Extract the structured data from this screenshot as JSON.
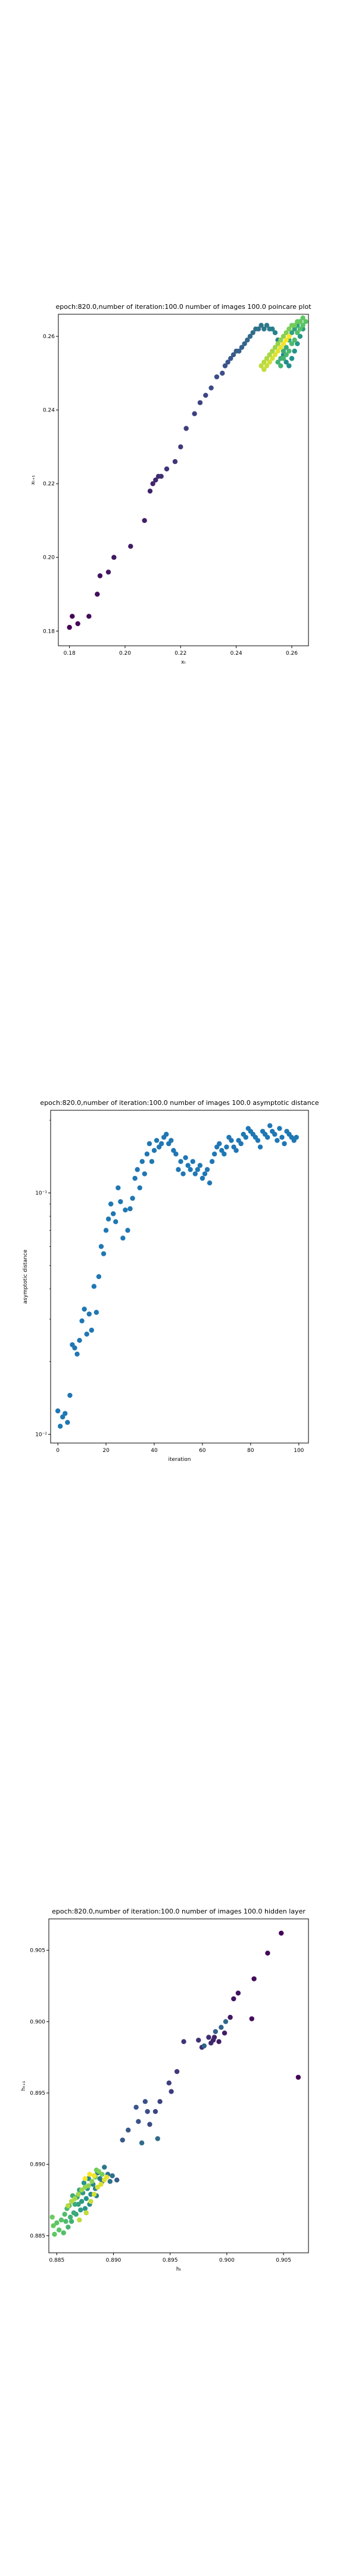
{
  "chart_data": [
    {
      "type": "scatter",
      "title": "epoch:820.0,number of iteration:100.0  number of images 100.0 poincare plot",
      "xlabel": "xₜ",
      "ylabel": "xₜ₊₁",
      "xlim": [
        0.176,
        0.266
      ],
      "ylim": [
        0.176,
        0.266
      ],
      "xticks": [
        0.18,
        0.2,
        0.22,
        0.24,
        0.26
      ],
      "yticks": [
        0.18,
        0.2,
        0.22,
        0.24,
        0.26
      ],
      "tick_labels": [
        "0.18",
        "0.20",
        "0.22",
        "0.24",
        "0.26"
      ],
      "color_by": "iteration",
      "points": [
        [
          0.18,
          0.181
        ],
        [
          0.181,
          0.184
        ],
        [
          0.183,
          0.182
        ],
        [
          0.187,
          0.184
        ],
        [
          0.19,
          0.19
        ],
        [
          0.191,
          0.195
        ],
        [
          0.194,
          0.196
        ],
        [
          0.196,
          0.2
        ],
        [
          0.202,
          0.203
        ],
        [
          0.207,
          0.21
        ],
        [
          0.209,
          0.218
        ],
        [
          0.21,
          0.22
        ],
        [
          0.211,
          0.221
        ],
        [
          0.212,
          0.222
        ],
        [
          0.213,
          0.222
        ],
        [
          0.215,
          0.224
        ],
        [
          0.218,
          0.226
        ],
        [
          0.22,
          0.23
        ],
        [
          0.222,
          0.235
        ],
        [
          0.225,
          0.239
        ],
        [
          0.227,
          0.242
        ],
        [
          0.229,
          0.244
        ],
        [
          0.231,
          0.246
        ],
        [
          0.233,
          0.249
        ],
        [
          0.235,
          0.25
        ],
        [
          0.236,
          0.252
        ],
        [
          0.237,
          0.253
        ],
        [
          0.238,
          0.254
        ],
        [
          0.239,
          0.255
        ],
        [
          0.24,
          0.256
        ],
        [
          0.241,
          0.256
        ],
        [
          0.242,
          0.257
        ],
        [
          0.243,
          0.258
        ],
        [
          0.244,
          0.259
        ],
        [
          0.245,
          0.26
        ],
        [
          0.246,
          0.261
        ],
        [
          0.247,
          0.262
        ],
        [
          0.248,
          0.262
        ],
        [
          0.249,
          0.263
        ],
        [
          0.25,
          0.262
        ],
        [
          0.251,
          0.263
        ],
        [
          0.252,
          0.262
        ],
        [
          0.253,
          0.262
        ],
        [
          0.254,
          0.261
        ],
        [
          0.255,
          0.259
        ],
        [
          0.256,
          0.257
        ],
        [
          0.257,
          0.255
        ],
        [
          0.258,
          0.253
        ],
        [
          0.259,
          0.252
        ],
        [
          0.26,
          0.254
        ],
        [
          0.261,
          0.256
        ],
        [
          0.262,
          0.258
        ],
        [
          0.263,
          0.26
        ],
        [
          0.264,
          0.262
        ],
        [
          0.263,
          0.264
        ],
        [
          0.262,
          0.263
        ],
        [
          0.261,
          0.262
        ],
        [
          0.26,
          0.261
        ],
        [
          0.259,
          0.259
        ],
        [
          0.258,
          0.257
        ],
        [
          0.257,
          0.256
        ],
        [
          0.256,
          0.254
        ],
        [
          0.255,
          0.253
        ],
        [
          0.256,
          0.252
        ],
        [
          0.257,
          0.254
        ],
        [
          0.258,
          0.255
        ],
        [
          0.259,
          0.256
        ],
        [
          0.26,
          0.258
        ],
        [
          0.261,
          0.259
        ],
        [
          0.262,
          0.261
        ],
        [
          0.263,
          0.262
        ],
        [
          0.264,
          0.263
        ],
        [
          0.265,
          0.264
        ],
        [
          0.264,
          0.265
        ],
        [
          0.263,
          0.264
        ],
        [
          0.262,
          0.264
        ],
        [
          0.261,
          0.263
        ],
        [
          0.26,
          0.263
        ],
        [
          0.259,
          0.262
        ],
        [
          0.258,
          0.261
        ],
        [
          0.257,
          0.26
        ],
        [
          0.256,
          0.259
        ],
        [
          0.255,
          0.258
        ],
        [
          0.254,
          0.257
        ],
        [
          0.253,
          0.256
        ],
        [
          0.252,
          0.255
        ],
        [
          0.251,
          0.254
        ],
        [
          0.25,
          0.253
        ],
        [
          0.249,
          0.252
        ],
        [
          0.25,
          0.251
        ],
        [
          0.251,
          0.252
        ],
        [
          0.252,
          0.253
        ],
        [
          0.253,
          0.254
        ],
        [
          0.254,
          0.255
        ],
        [
          0.255,
          0.256
        ],
        [
          0.256,
          0.257
        ],
        [
          0.257,
          0.258
        ],
        [
          0.258,
          0.259
        ],
        [
          0.259,
          0.26
        ]
      ]
    },
    {
      "type": "scatter",
      "title": "epoch:820.0,number of iteration:100.0  number of images 100.0 asymptotic distance",
      "xlabel": "iteration",
      "ylabel": "asymptotic distance",
      "yscale": "log",
      "xlim": [
        -3,
        104
      ],
      "ylim": [
        0.0092,
        0.22
      ],
      "xticks": [
        0,
        20,
        40,
        60,
        80,
        100
      ],
      "xtick_labels": [
        "0",
        "20",
        "40",
        "60",
        "80",
        "100"
      ],
      "yticks": [
        0.01,
        0.1
      ],
      "ytick_labels": [
        "10⁻²",
        "10⁻¹"
      ],
      "color": "#1f77b4",
      "x": [
        0,
        1,
        2,
        3,
        4,
        5,
        6,
        7,
        8,
        9,
        10,
        11,
        12,
        13,
        14,
        15,
        16,
        17,
        18,
        19,
        20,
        21,
        22,
        23,
        24,
        25,
        26,
        27,
        28,
        29,
        30,
        31,
        32,
        33,
        34,
        35,
        36,
        37,
        38,
        39,
        40,
        41,
        42,
        43,
        44,
        45,
        46,
        47,
        48,
        49,
        50,
        51,
        52,
        53,
        54,
        55,
        56,
        57,
        58,
        59,
        60,
        61,
        62,
        63,
        64,
        65,
        66,
        67,
        68,
        69,
        70,
        71,
        72,
        73,
        74,
        75,
        76,
        77,
        78,
        79,
        80,
        81,
        82,
        83,
        84,
        85,
        86,
        87,
        88,
        89,
        90,
        91,
        92,
        93,
        94,
        95,
        96,
        97,
        98,
        99
      ],
      "y": [
        0.0125,
        0.0108,
        0.0118,
        0.0122,
        0.0112,
        0.0145,
        0.0235,
        0.0228,
        0.0215,
        0.0245,
        0.0295,
        0.033,
        0.026,
        0.0315,
        0.027,
        0.041,
        0.032,
        0.045,
        0.06,
        0.056,
        0.07,
        0.078,
        0.09,
        0.082,
        0.076,
        0.105,
        0.092,
        0.065,
        0.085,
        0.07,
        0.086,
        0.095,
        0.115,
        0.125,
        0.105,
        0.135,
        0.12,
        0.145,
        0.16,
        0.135,
        0.15,
        0.165,
        0.155,
        0.16,
        0.17,
        0.175,
        0.16,
        0.165,
        0.15,
        0.145,
        0.125,
        0.135,
        0.12,
        0.14,
        0.13,
        0.125,
        0.135,
        0.12,
        0.125,
        0.13,
        0.115,
        0.12,
        0.125,
        0.11,
        0.135,
        0.145,
        0.155,
        0.16,
        0.15,
        0.145,
        0.155,
        0.17,
        0.165,
        0.155,
        0.15,
        0.165,
        0.16,
        0.175,
        0.17,
        0.185,
        0.18,
        0.175,
        0.17,
        0.165,
        0.155,
        0.18,
        0.175,
        0.17,
        0.19,
        0.18,
        0.175,
        0.165,
        0.185,
        0.17,
        0.16,
        0.18,
        0.175,
        0.17,
        0.165,
        0.17
      ]
    },
    {
      "type": "scatter",
      "title": "epoch:820.0,number of iteration:100.0  number of images 100.0 hidden layer",
      "xlabel": "hₜ",
      "ylabel": "hₜ₊₁",
      "xlim": [
        0.8843,
        0.9072
      ],
      "ylim": [
        0.8838,
        0.9072
      ],
      "xticks": [
        0.885,
        0.89,
        0.895,
        0.9,
        0.905
      ],
      "xtick_labels": [
        "0.885",
        "0.890",
        "0.895",
        "0.900",
        "0.905"
      ],
      "yticks": [
        0.885,
        0.89,
        0.895,
        0.9,
        0.905
      ],
      "ytick_labels": [
        "0.885",
        "0.890",
        "0.895",
        "0.900",
        "0.905"
      ],
      "color_by": "iteration",
      "points": [
        [
          0.9063,
          0.8961
        ],
        [
          0.9048,
          0.9062
        ],
        [
          0.9036,
          0.9048
        ],
        [
          0.9024,
          0.903
        ],
        [
          0.9022,
          0.9002
        ],
        [
          0.901,
          0.902
        ],
        [
          0.9006,
          0.9016
        ],
        [
          0.9003,
          0.9003
        ],
        [
          0.8998,
          0.8992
        ],
        [
          0.8993,
          0.8986
        ],
        [
          0.8989,
          0.8989
        ],
        [
          0.8988,
          0.8987
        ],
        [
          0.8986,
          0.8985
        ],
        [
          0.8984,
          0.8989
        ],
        [
          0.8978,
          0.8982
        ],
        [
          0.8975,
          0.8987
        ],
        [
          0.8962,
          0.8986
        ],
        [
          0.8956,
          0.8965
        ],
        [
          0.8951,
          0.8951
        ],
        [
          0.8949,
          0.8957
        ],
        [
          0.8941,
          0.8944
        ],
        [
          0.8937,
          0.8937
        ],
        [
          0.8932,
          0.8928
        ],
        [
          0.893,
          0.8937
        ],
        [
          0.8928,
          0.8944
        ],
        [
          0.8922,
          0.893
        ],
        [
          0.892,
          0.894
        ],
        [
          0.8913,
          0.8924
        ],
        [
          0.8908,
          0.8917
        ],
        [
          0.8903,
          0.8889
        ],
        [
          0.899,
          0.8993
        ],
        [
          0.8995,
          0.8996
        ],
        [
          0.898,
          0.8983
        ],
        [
          0.8999,
          0.9
        ],
        [
          0.8939,
          0.8918
        ],
        [
          0.8925,
          0.8915
        ],
        [
          0.8899,
          0.8892
        ],
        [
          0.8897,
          0.8888
        ],
        [
          0.8895,
          0.8893
        ],
        [
          0.8892,
          0.8898
        ],
        [
          0.889,
          0.8888
        ],
        [
          0.8888,
          0.889
        ],
        [
          0.8886,
          0.8894
        ],
        [
          0.8885,
          0.8878
        ],
        [
          0.8884,
          0.8883
        ],
        [
          0.8882,
          0.8886
        ],
        [
          0.888,
          0.8879
        ],
        [
          0.8879,
          0.8872
        ],
        [
          0.8878,
          0.889
        ],
        [
          0.8877,
          0.8883
        ],
        [
          0.8876,
          0.8876
        ],
        [
          0.8875,
          0.8869
        ],
        [
          0.8874,
          0.8887
        ],
        [
          0.8873,
          0.888
        ],
        [
          0.8872,
          0.8874
        ],
        [
          0.8871,
          0.8868
        ],
        [
          0.887,
          0.8882
        ],
        [
          0.8869,
          0.8872
        ],
        [
          0.8868,
          0.8877
        ],
        [
          0.8867,
          0.8865
        ],
        [
          0.8866,
          0.8872
        ],
        [
          0.8865,
          0.8866
        ],
        [
          0.8864,
          0.8878
        ],
        [
          0.8863,
          0.886
        ],
        [
          0.8862,
          0.8863
        ],
        [
          0.8861,
          0.8871
        ],
        [
          0.886,
          0.8856
        ],
        [
          0.8859,
          0.8869
        ],
        [
          0.8858,
          0.886
        ],
        [
          0.8857,
          0.8865
        ],
        [
          0.8856,
          0.8852
        ],
        [
          0.8854,
          0.8861
        ],
        [
          0.8852,
          0.8854
        ],
        [
          0.885,
          0.8859
        ],
        [
          0.8848,
          0.8851
        ],
        [
          0.8847,
          0.8857
        ],
        [
          0.8846,
          0.8863
        ],
        [
          0.8885,
          0.8896
        ],
        [
          0.889,
          0.8893
        ],
        [
          0.8887,
          0.8895
        ],
        [
          0.8884,
          0.8891
        ],
        [
          0.8881,
          0.8888
        ],
        [
          0.8878,
          0.8885
        ],
        [
          0.8875,
          0.8884
        ],
        [
          0.8872,
          0.8882
        ],
        [
          0.8869,
          0.8879
        ],
        [
          0.8866,
          0.8876
        ],
        [
          0.8863,
          0.8874
        ],
        [
          0.886,
          0.8871
        ],
        [
          0.887,
          0.8861
        ],
        [
          0.8876,
          0.8866
        ],
        [
          0.888,
          0.8874
        ],
        [
          0.8883,
          0.8879
        ],
        [
          0.8886,
          0.8884
        ],
        [
          0.8889,
          0.8886
        ],
        [
          0.8892,
          0.8889
        ],
        [
          0.8894,
          0.8891
        ],
        [
          0.8883,
          0.8892
        ],
        [
          0.8879,
          0.8893
        ],
        [
          0.8875,
          0.889
        ]
      ]
    }
  ]
}
